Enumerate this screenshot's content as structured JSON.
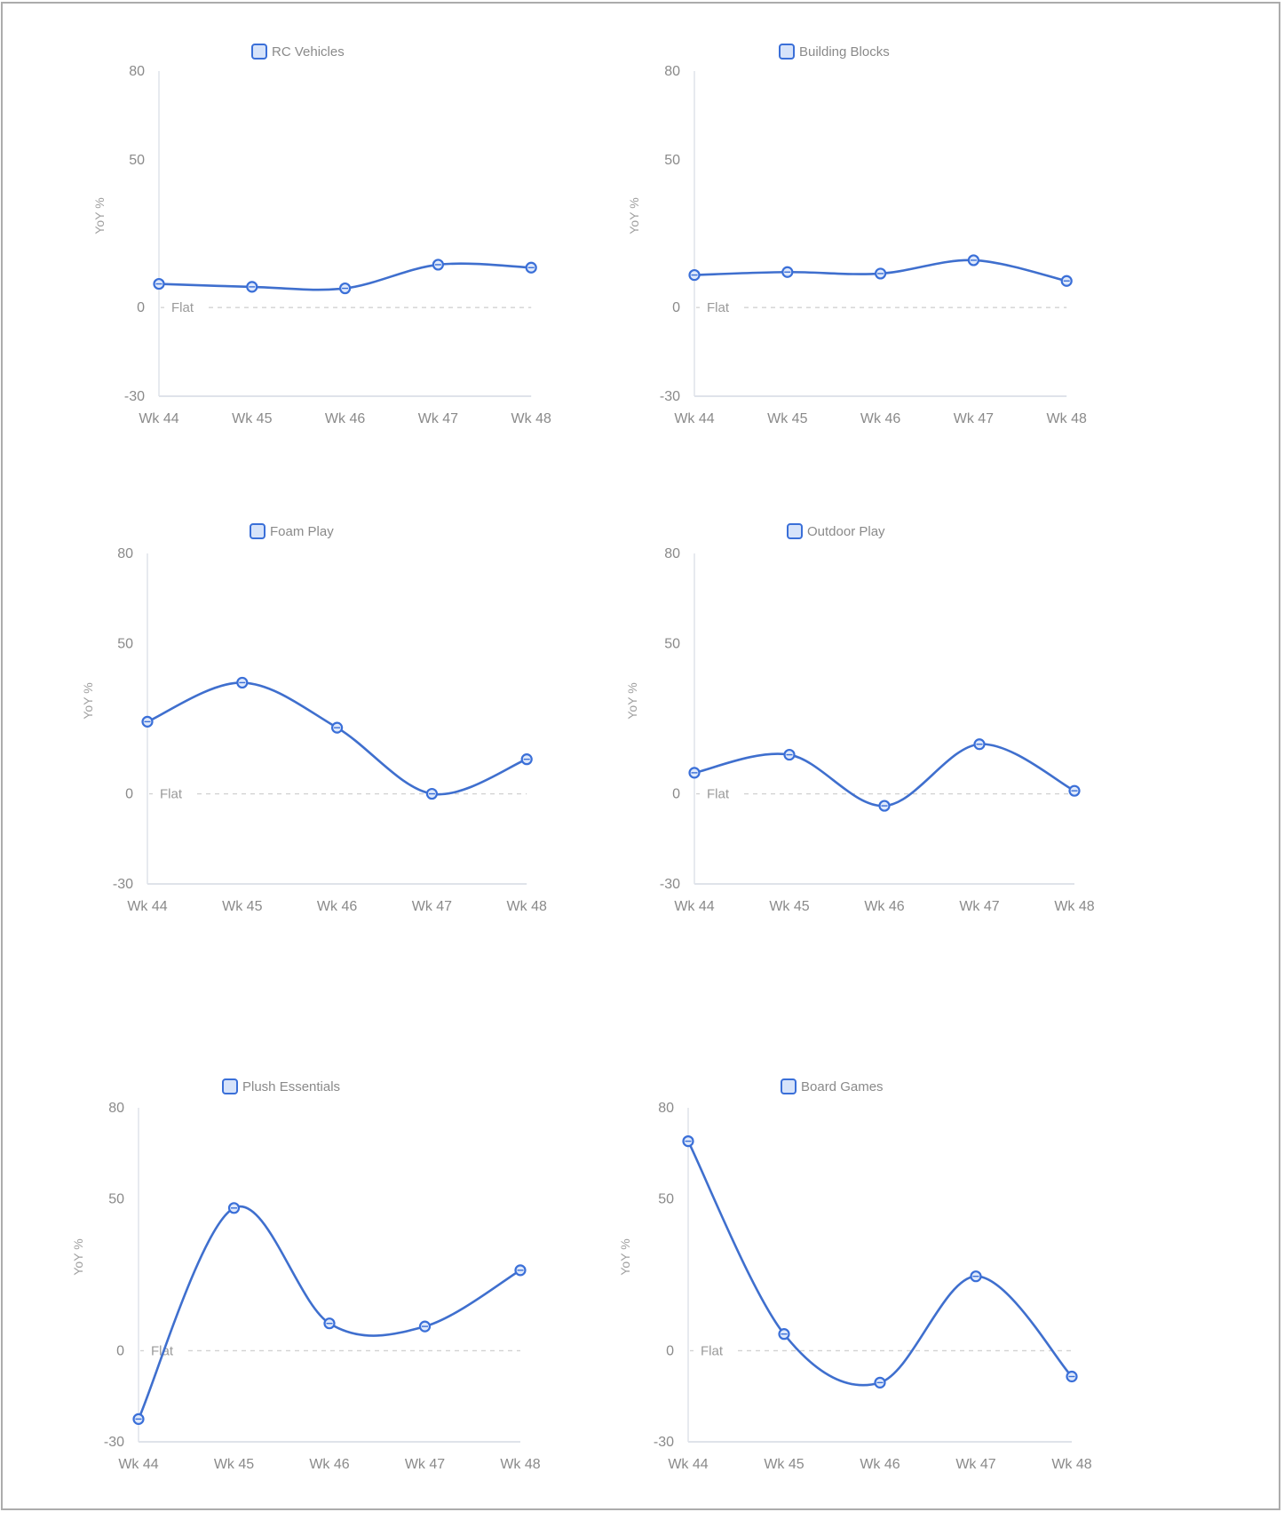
{
  "chart_data": [
    {
      "type": "line",
      "title": "RC Vehicles",
      "legend": [
        "RC Vehicles"
      ],
      "legend_position": "top",
      "categories": [
        "Wk 44",
        "Wk 45",
        "Wk 46",
        "Wk 47",
        "Wk 48"
      ],
      "series": [
        {
          "name": "RC Vehicles",
          "values": [
            8,
            7,
            6.5,
            14.5,
            13.5
          ]
        }
      ],
      "xlabel": "",
      "ylabel": "YoY %",
      "ylim": [
        -30,
        80
      ],
      "yticks": [
        -30,
        0,
        50,
        80
      ],
      "reference_line": {
        "value": 0,
        "label": "Flat",
        "style": "dashed"
      },
      "grid": false,
      "smooth": true
    },
    {
      "type": "line",
      "title": "Building Blocks",
      "legend": [
        "Building Blocks"
      ],
      "legend_position": "top",
      "categories": [
        "Wk 44",
        "Wk 45",
        "Wk 46",
        "Wk 47",
        "Wk 48"
      ],
      "series": [
        {
          "name": "Building Blocks",
          "values": [
            11,
            12,
            11.5,
            16,
            9
          ]
        }
      ],
      "xlabel": "",
      "ylabel": "YoY %",
      "ylim": [
        -30,
        80
      ],
      "yticks": [
        -30,
        0,
        50,
        80
      ],
      "reference_line": {
        "value": 0,
        "label": "Flat",
        "style": "dashed"
      },
      "grid": false,
      "smooth": true
    },
    {
      "type": "line",
      "title": "Foam Play",
      "legend": [
        "Foam Play"
      ],
      "legend_position": "top",
      "categories": [
        "Wk 44",
        "Wk 45",
        "Wk 46",
        "Wk 47",
        "Wk 48"
      ],
      "series": [
        {
          "name": "Foam Play",
          "values": [
            24,
            37,
            22,
            0,
            11.5
          ]
        }
      ],
      "xlabel": "",
      "ylabel": "YoY %",
      "ylim": [
        -30,
        80
      ],
      "yticks": [
        -30,
        0,
        50,
        80
      ],
      "reference_line": {
        "value": 0,
        "label": "Flat",
        "style": "dashed"
      },
      "grid": false,
      "smooth": true
    },
    {
      "type": "line",
      "title": "Outdoor Play",
      "legend": [
        "Outdoor Play"
      ],
      "legend_position": "top",
      "categories": [
        "Wk 44",
        "Wk 45",
        "Wk 46",
        "Wk 47",
        "Wk 48"
      ],
      "series": [
        {
          "name": "Outdoor Play",
          "values": [
            7,
            13,
            -4,
            16.5,
            1
          ]
        }
      ],
      "xlabel": "",
      "ylabel": "YoY %",
      "ylim": [
        -30,
        80
      ],
      "yticks": [
        -30,
        0,
        50,
        80
      ],
      "reference_line": {
        "value": 0,
        "label": "Flat",
        "style": "dashed"
      },
      "grid": false,
      "smooth": true
    },
    {
      "type": "line",
      "title": "Plush Essentials",
      "legend": [
        "Plush Essentials"
      ],
      "legend_position": "top",
      "categories": [
        "Wk 44",
        "Wk 45",
        "Wk 46",
        "Wk 47",
        "Wk 48"
      ],
      "series": [
        {
          "name": "Plush Essentials",
          "values": [
            -22.5,
            47,
            9,
            8,
            26.5
          ]
        }
      ],
      "xlabel": "",
      "ylabel": "YoY %",
      "ylim": [
        -30,
        80
      ],
      "yticks": [
        -30,
        0,
        50,
        80
      ],
      "reference_line": {
        "value": 0,
        "label": "Flat",
        "style": "dashed"
      },
      "grid": false,
      "smooth": true
    },
    {
      "type": "line",
      "title": "Board Games",
      "legend": [
        "Board Games"
      ],
      "legend_position": "top",
      "categories": [
        "Wk 44",
        "Wk 45",
        "Wk 46",
        "Wk 47",
        "Wk 48"
      ],
      "series": [
        {
          "name": "Board Games",
          "values": [
            69,
            5.5,
            -10.5,
            24.5,
            -8.5
          ]
        }
      ],
      "xlabel": "",
      "ylabel": "YoY %",
      "ylim": [
        -30,
        80
      ],
      "yticks": [
        -30,
        0,
        50,
        80
      ],
      "reference_line": {
        "value": 0,
        "label": "Flat",
        "style": "dashed"
      },
      "grid": false,
      "smooth": true
    }
  ],
  "colors": {
    "line": "#3f6fce",
    "point_stroke": "#3a6fd8",
    "point_fill": "#dfe9fb",
    "legend_fill": "#d6e3fa",
    "axis": "#dfe3ea",
    "tick_text": "#8a8a8a",
    "reference_line": "#d2d2d2"
  }
}
